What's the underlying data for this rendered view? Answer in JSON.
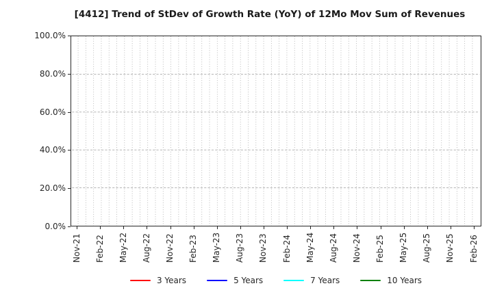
{
  "chart_data": {
    "type": "line",
    "title": "[4412]  Trend of StDev of Growth Rate (YoY) of 12Mo Mov Sum of Revenues",
    "xlabel": "",
    "ylabel": "",
    "x_tick_labels": [
      "Nov-21",
      "Feb-22",
      "May-22",
      "Aug-22",
      "Nov-22",
      "Feb-23",
      "May-23",
      "Aug-23",
      "Nov-23",
      "Feb-24",
      "May-24",
      "Aug-24",
      "Nov-24",
      "Feb-25",
      "May-25",
      "Aug-25",
      "Nov-25",
      "Feb-26"
    ],
    "months_per_labeled_tick": 3,
    "y_tick_labels": [
      "0.0%",
      "20.0%",
      "40.0%",
      "60.0%",
      "80.0%",
      "100.0%"
    ],
    "ylim": [
      0,
      100
    ],
    "grid": true,
    "legend_position": "bottom-center",
    "series": [
      {
        "name": "3 Years",
        "color": "#ff0000",
        "values": []
      },
      {
        "name": "5 Years",
        "color": "#0000ff",
        "values": []
      },
      {
        "name": "7 Years",
        "color": "#00ffff",
        "values": []
      },
      {
        "name": "10 Years",
        "color": "#008000",
        "values": []
      }
    ]
  }
}
